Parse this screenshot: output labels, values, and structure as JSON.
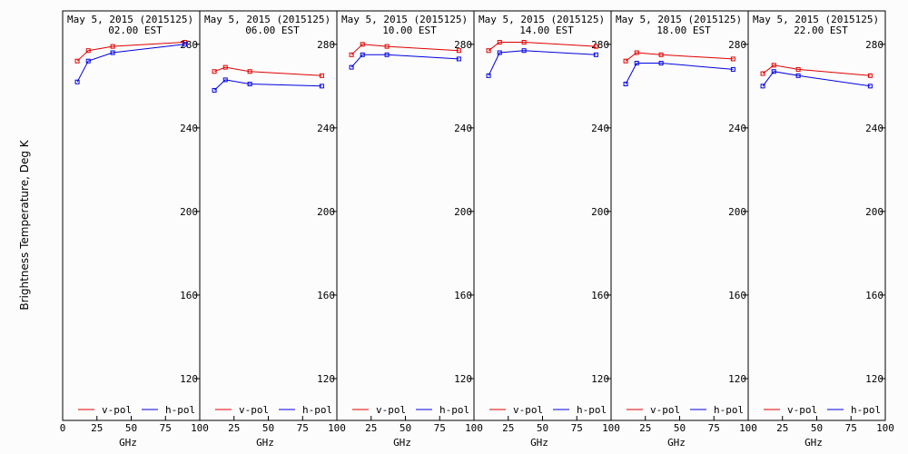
{
  "chart_data": {
    "type": "line",
    "ylabel": "Brightness Temperature, Deg K",
    "xlabel": "GHz",
    "xlim": [
      0,
      100
    ],
    "ylim": [
      100,
      296
    ],
    "yticks": [
      120,
      160,
      200,
      240,
      280
    ],
    "xticks": [
      0,
      25,
      50,
      75,
      100
    ],
    "legend_position": "bottom",
    "colors": {
      "v-pol": "#e00000",
      "h-pol": "#0000e0"
    },
    "panels": [
      {
        "title": "May  5, 2015 (2015125)",
        "subtitle": "02.00 EST",
        "series": [
          {
            "name": "v-pol",
            "x": [
              10.65,
              18.7,
              36.5,
              89.0
            ],
            "y": [
              272,
              277,
              279,
              281
            ]
          },
          {
            "name": "h-pol",
            "x": [
              10.65,
              18.7,
              36.5,
              89.0
            ],
            "y": [
              262,
              272,
              276,
              280
            ]
          }
        ]
      },
      {
        "title": "May  5, 2015 (2015125)",
        "subtitle": "06.00 EST",
        "series": [
          {
            "name": "v-pol",
            "x": [
              10.65,
              18.7,
              36.5,
              89.0
            ],
            "y": [
              267,
              269,
              267,
              265
            ]
          },
          {
            "name": "h-pol",
            "x": [
              10.65,
              18.7,
              36.5,
              89.0
            ],
            "y": [
              258,
              263,
              261,
              260
            ]
          }
        ]
      },
      {
        "title": "May  5, 2015 (2015125)",
        "subtitle": "10.00 EST",
        "series": [
          {
            "name": "v-pol",
            "x": [
              10.65,
              18.7,
              36.5,
              89.0
            ],
            "y": [
              275,
              280,
              279,
              277
            ]
          },
          {
            "name": "h-pol",
            "x": [
              10.65,
              18.7,
              36.5,
              89.0
            ],
            "y": [
              269,
              275,
              275,
              273
            ]
          }
        ]
      },
      {
        "title": "May  5, 2015 (2015125)",
        "subtitle": "14.00 EST",
        "series": [
          {
            "name": "v-pol",
            "x": [
              10.65,
              18.7,
              36.5,
              89.0
            ],
            "y": [
              277,
              281,
              281,
              279
            ]
          },
          {
            "name": "h-pol",
            "x": [
              10.65,
              18.7,
              36.5,
              89.0
            ],
            "y": [
              265,
              276,
              277,
              275
            ]
          }
        ]
      },
      {
        "title": "May  5, 2015 (2015125)",
        "subtitle": "18.00 EST",
        "series": [
          {
            "name": "v-pol",
            "x": [
              10.65,
              18.7,
              36.5,
              89.0
            ],
            "y": [
              272,
              276,
              275,
              273
            ]
          },
          {
            "name": "h-pol",
            "x": [
              10.65,
              18.7,
              36.5,
              89.0
            ],
            "y": [
              261,
              271,
              271,
              268
            ]
          }
        ]
      },
      {
        "title": "May  5, 2015 (2015125)",
        "subtitle": "22.00 EST",
        "series": [
          {
            "name": "v-pol",
            "x": [
              10.65,
              18.7,
              36.5,
              89.0
            ],
            "y": [
              266,
              270,
              268,
              265
            ]
          },
          {
            "name": "h-pol",
            "x": [
              10.65,
              18.7,
              36.5,
              89.0
            ],
            "y": [
              260,
              267,
              265,
              260
            ]
          }
        ]
      }
    ]
  }
}
